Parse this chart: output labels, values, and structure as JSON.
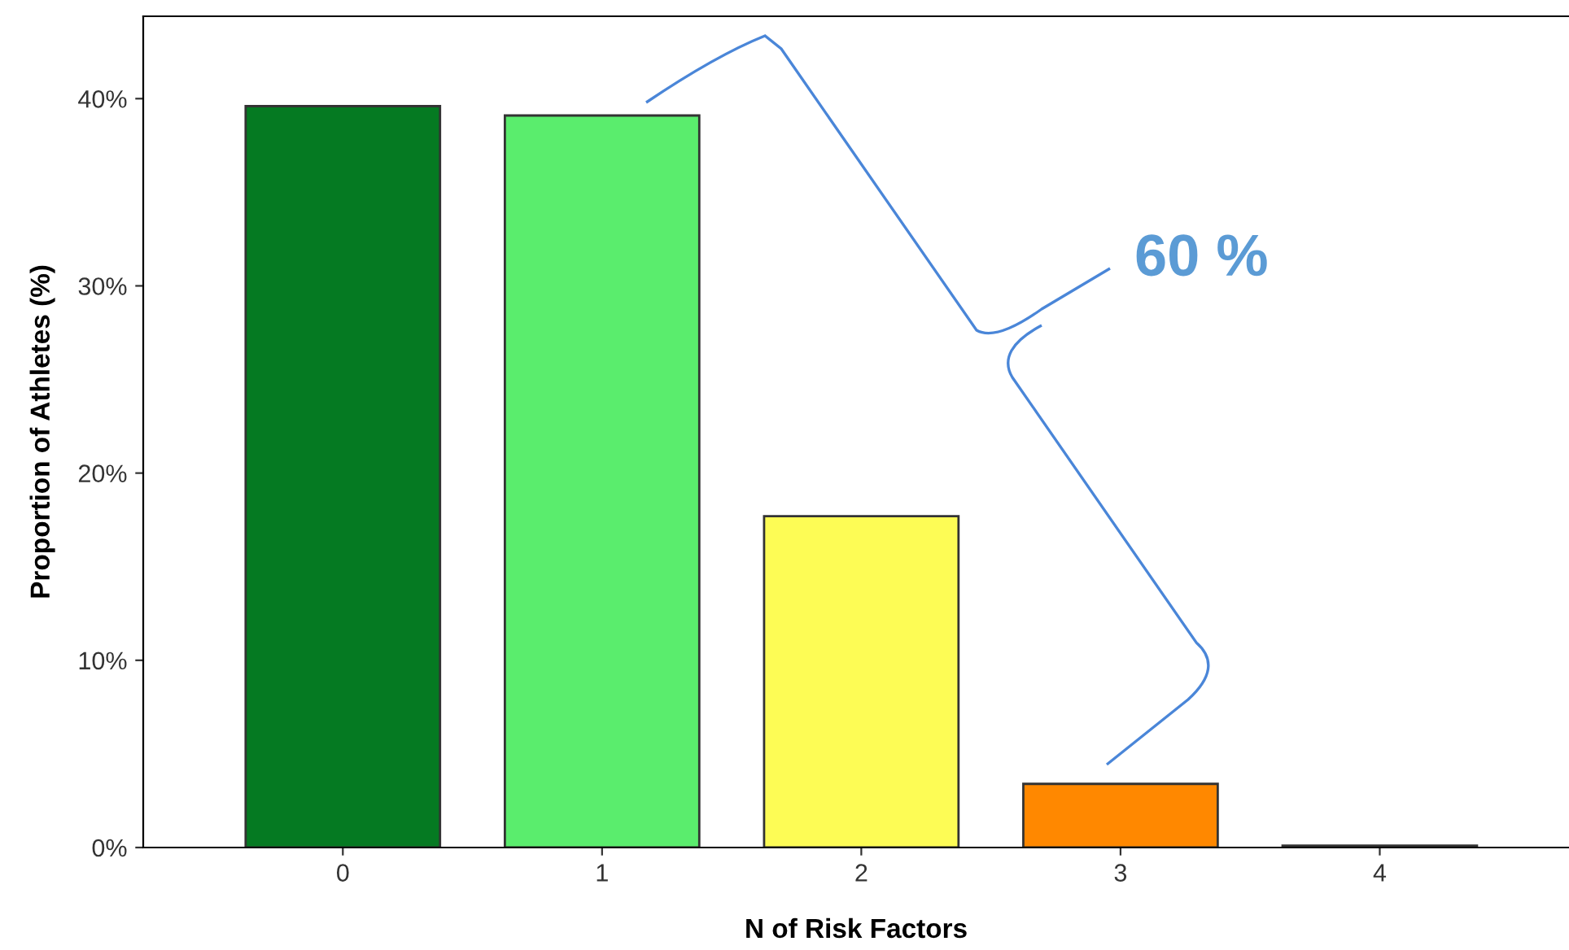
{
  "chart_data": {
    "type": "bar",
    "categories": [
      "0",
      "1",
      "2",
      "3",
      "4"
    ],
    "values": [
      39.6,
      39.1,
      17.7,
      3.4,
      0.1
    ],
    "colors": [
      "#057a22",
      "#5aed6d",
      "#fdfc55",
      "#ff8800",
      "#6a0a3a"
    ],
    "xlabel": "N of Risk Factors",
    "ylabel": "Proportion of Athletes (%)",
    "ylim": [
      0,
      44.4
    ],
    "yticks": [
      {
        "value": 0,
        "label": "0%"
      },
      {
        "value": 10,
        "label": "10%"
      },
      {
        "value": 20,
        "label": "20%"
      },
      {
        "value": 30,
        "label": "30%"
      },
      {
        "value": 40,
        "label": "40%"
      }
    ],
    "annotations": [
      "60 %"
    ],
    "grid": false,
    "legend": false
  }
}
